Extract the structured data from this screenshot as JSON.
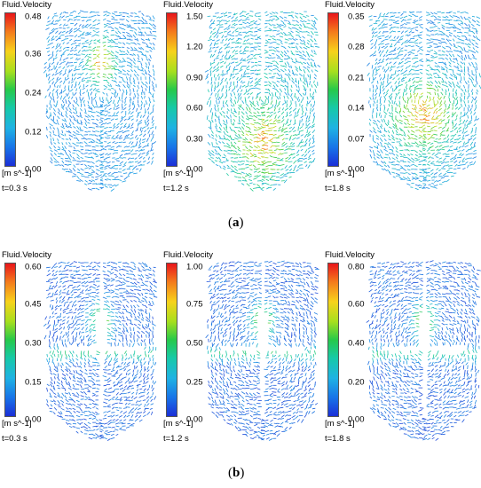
{
  "panels": [
    {
      "title": "Fluid.Velocity",
      "ticks": [
        "0.48",
        "0.36",
        "0.24",
        "0.12",
        "0.00"
      ],
      "unit": "[m s^-1]",
      "time": "t=0.3 s",
      "max": 0.48
    },
    {
      "title": "Fluid.Velocity",
      "ticks": [
        "1.50",
        "1.20",
        "0.90",
        "0.60",
        "0.30",
        "0.00"
      ],
      "unit": "[m s^-1]",
      "time": "t=1.2 s",
      "max": 1.5
    },
    {
      "title": "Fluid.Velocity",
      "ticks": [
        "0.35",
        "0.28",
        "0.21",
        "0.14",
        "0.07",
        "0.00"
      ],
      "unit": "[m s^-1]",
      "time": "t=1.8 s",
      "max": 0.35
    },
    {
      "title": "Fluid.Velocity",
      "ticks": [
        "0.60",
        "0.45",
        "0.30",
        "0.15",
        "0.00"
      ],
      "unit": "[m s^-1]",
      "time": "t=0.3 s",
      "max": 0.6
    },
    {
      "title": "Fluid.Velocity",
      "ticks": [
        "1.00",
        "0.75",
        "0.50",
        "0.25",
        "0.00"
      ],
      "unit": "[m s^-1]",
      "time": "t=1.2 s",
      "max": 1.0
    },
    {
      "title": "Fluid.Velocity",
      "ticks": [
        "0.80",
        "0.60",
        "0.40",
        "0.20",
        "0.00"
      ],
      "unit": "[m s^-1]",
      "time": "t=1.8 s",
      "max": 0.8
    }
  ],
  "captions": {
    "a": "a",
    "b": "b"
  },
  "colors": {
    "low": "#1b2fd7",
    "mid": "#27c94a",
    "high": "#e8151b"
  }
}
